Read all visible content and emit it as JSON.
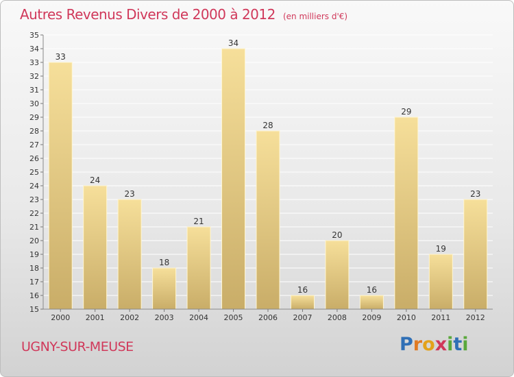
{
  "header": {
    "title": "Autres Revenus Divers de 2000 à 2012",
    "unit": "(en milliers d'€)"
  },
  "footer": {
    "commune": "UGNY-SUR-MEUSE",
    "brand": "Proxiti",
    "brand_letters": [
      {
        "ch": "P",
        "color": "#2f6fb6"
      },
      {
        "ch": "r",
        "color": "#e07a23"
      },
      {
        "ch": "o",
        "color": "#e3a21a"
      },
      {
        "ch": "x",
        "color": "#d0385a"
      },
      {
        "ch": "i",
        "color": "#5aa83c"
      },
      {
        "ch": "t",
        "color": "#2f6fb6"
      },
      {
        "ch": "i",
        "color": "#5aa83c"
      }
    ]
  },
  "chart_data": {
    "type": "bar",
    "title": "Autres Revenus Divers de 2000 à 2012",
    "subtitle": "(en milliers d'€)",
    "categories": [
      "2000",
      "2001",
      "2002",
      "2003",
      "2004",
      "2005",
      "2006",
      "2007",
      "2008",
      "2009",
      "2010",
      "2011",
      "2012"
    ],
    "values": [
      33,
      24,
      23,
      18,
      21,
      34,
      28,
      16,
      20,
      16,
      29,
      19,
      23
    ],
    "ylim": [
      15,
      35
    ],
    "yticks": [
      15,
      16,
      17,
      18,
      19,
      20,
      21,
      22,
      23,
      24,
      25,
      26,
      27,
      28,
      29,
      30,
      31,
      32,
      33,
      34,
      35
    ],
    "grid": true,
    "data_labels": true,
    "colors": {
      "bar_light": "#f6df9a",
      "bar_dark": "#c9ad68",
      "grid": "#ffffff",
      "axis_text": "#333333"
    }
  }
}
